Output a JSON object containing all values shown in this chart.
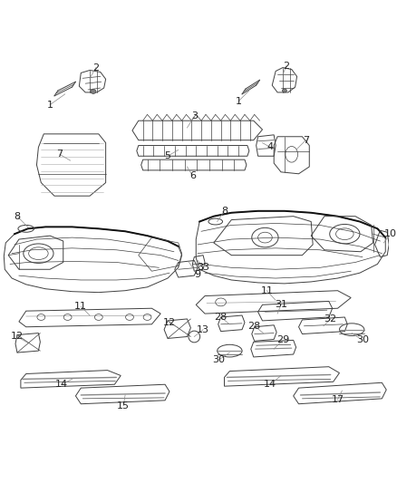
{
  "bg_color": "#ffffff",
  "line_color": "#404040",
  "label_color": "#222222",
  "leader_color": "#888888",
  "fig_width": 4.38,
  "fig_height": 5.33,
  "dpi": 100
}
